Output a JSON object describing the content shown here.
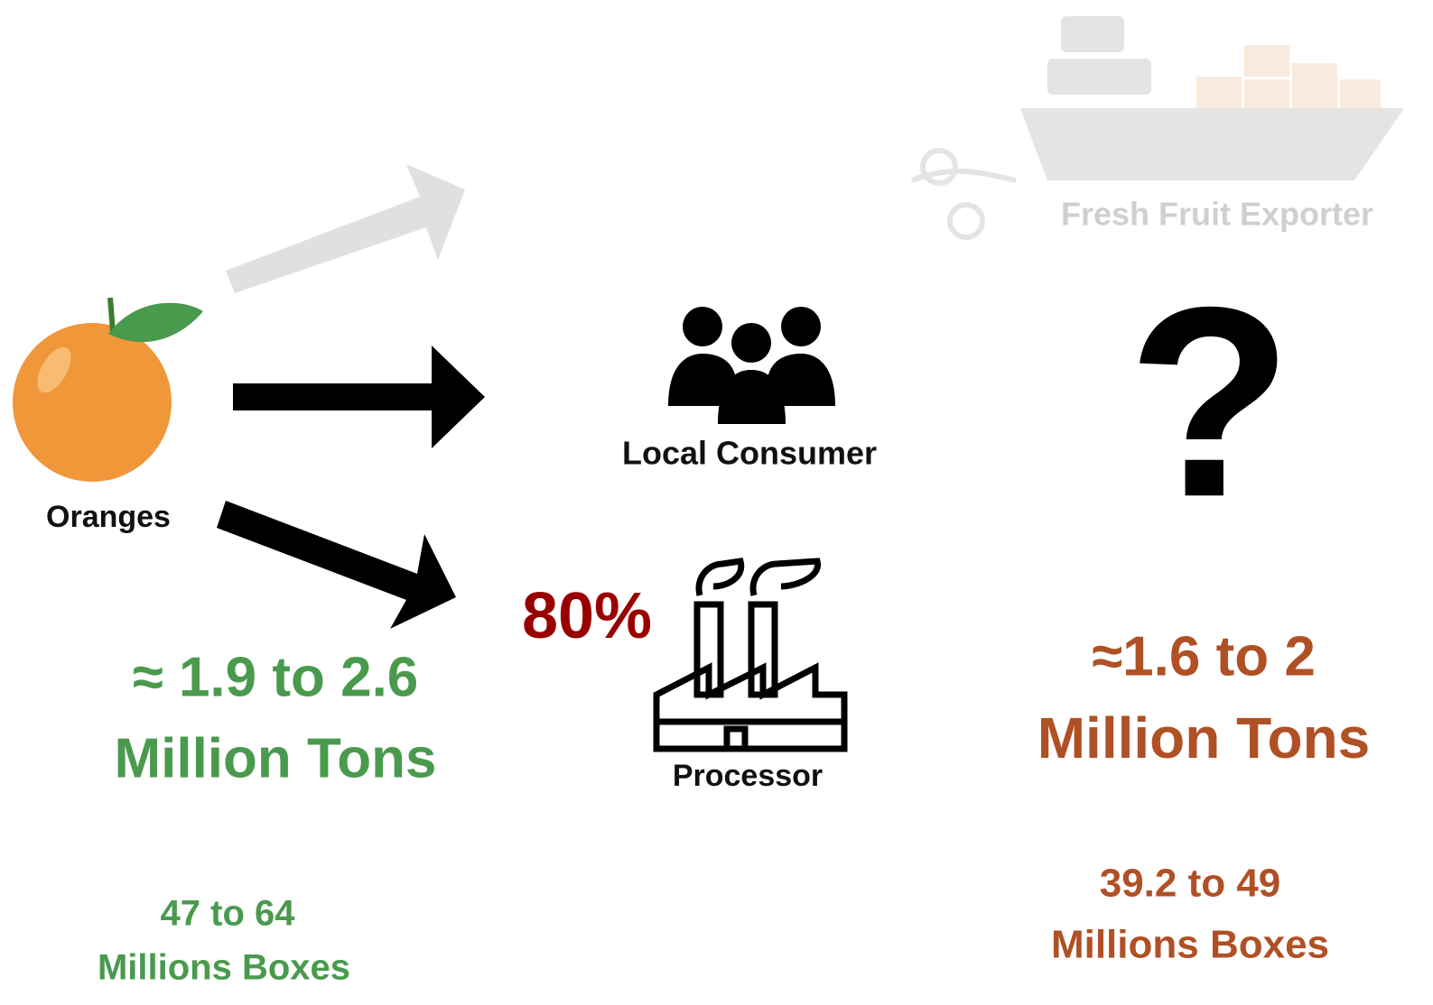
{
  "source": {
    "label": "Oranges",
    "tons": "≈ 1.9 to 2.6",
    "tons_unit": "Million Tons",
    "boxes": "47 to 64",
    "boxes_unit": "Millions Boxes"
  },
  "destinations": {
    "exporter": {
      "label": "Fresh Fruit Exporter"
    },
    "consumer": {
      "label": "Local Consumer"
    },
    "processor": {
      "label": "Processor",
      "share": "80%"
    }
  },
  "result": {
    "marker": "?",
    "tons": "≈1.6 to 2",
    "tons_unit": "Million Tons",
    "boxes": "39.2 to 49",
    "boxes_unit": "Millions Boxes"
  }
}
